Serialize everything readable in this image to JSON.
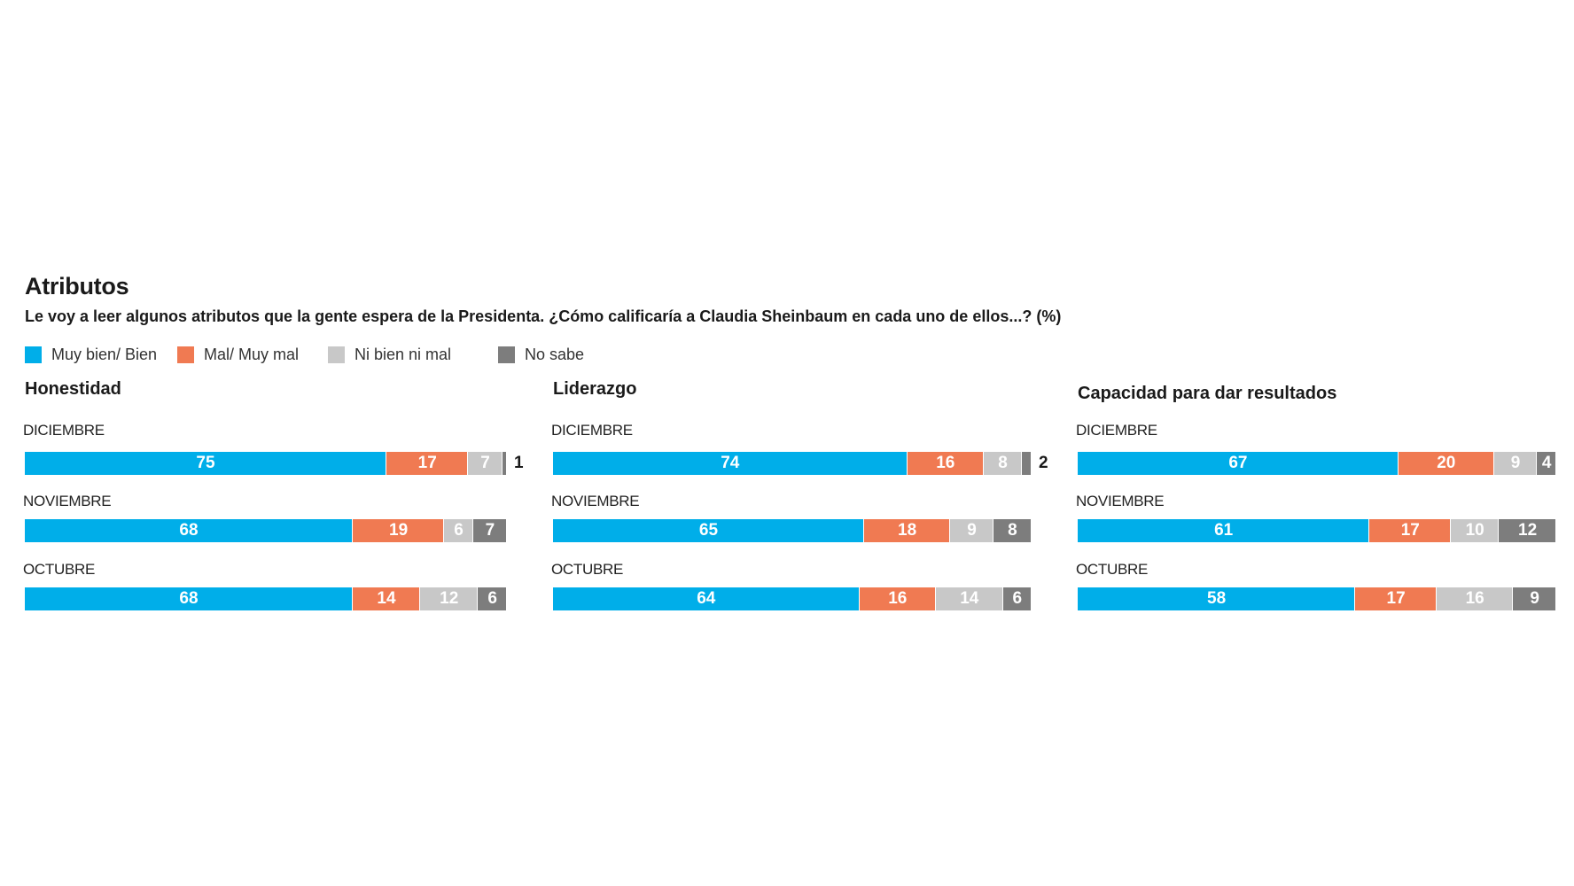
{
  "title": "Atributos",
  "subtitle": "Le voy a leer algunos atributos que la gente espera de la Presidenta. ¿Cómo calificaría a Claudia Sheinbaum en cada uno de ellos...?  (%)",
  "colors": {
    "muy_bien": "#00aee9",
    "mal": "#f07a52",
    "ni_bien": "#c8c8c8",
    "no_sabe": "#7d7d7d"
  },
  "legend": [
    {
      "label": "Muy bien/ Bien",
      "color": "#00aee9"
    },
    {
      "label": "Mal/ Muy mal",
      "color": "#f07a52"
    },
    {
      "label": "Ni bien ni mal",
      "color": "#c8c8c8"
    },
    {
      "label": "No sabe",
      "color": "#7d7d7d"
    }
  ],
  "chart_data": {
    "type": "bar",
    "stacked": true,
    "orientation": "horizontal",
    "unit": "%",
    "series_names": [
      "Muy bien/ Bien",
      "Mal/ Muy mal",
      "Ni bien ni mal",
      "No sabe"
    ],
    "panels": [
      {
        "title": "Honestidad",
        "rows": [
          {
            "label": "DICIEMBRE",
            "values": [
              75,
              17,
              7,
              1
            ]
          },
          {
            "label": "NOVIEMBRE",
            "values": [
              68,
              19,
              6,
              7
            ]
          },
          {
            "label": "OCTUBRE",
            "values": [
              68,
              14,
              12,
              6
            ]
          }
        ]
      },
      {
        "title": "Liderazgo",
        "rows": [
          {
            "label": "DICIEMBRE",
            "values": [
              74,
              16,
              8,
              2
            ]
          },
          {
            "label": "NOVIEMBRE",
            "values": [
              65,
              18,
              9,
              8
            ]
          },
          {
            "label": "OCTUBRE",
            "values": [
              64,
              16,
              14,
              6
            ]
          }
        ]
      },
      {
        "title": "Capacidad para dar resultados",
        "rows": [
          {
            "label": "DICIEMBRE",
            "values": [
              67,
              20,
              9,
              4
            ]
          },
          {
            "label": "NOVIEMBRE",
            "values": [
              61,
              17,
              10,
              12
            ]
          },
          {
            "label": "OCTUBRE",
            "values": [
              58,
              17,
              16,
              9
            ]
          }
        ]
      }
    ]
  }
}
